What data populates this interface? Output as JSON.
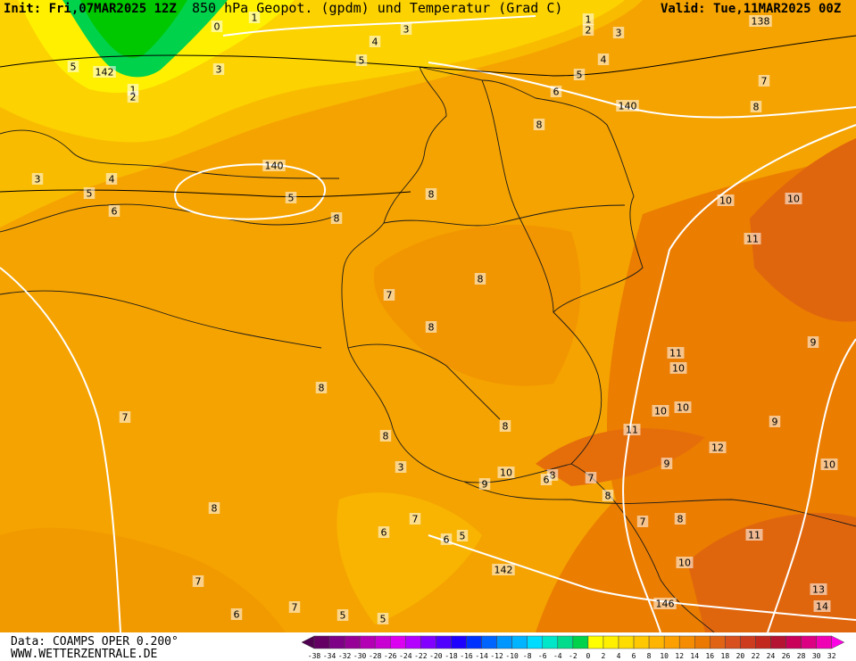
{
  "header": {
    "init": "Init: Fri,07MAR2025 12Z",
    "title": "850 hPa Geopot. (gpdm) und Temperatur (Grad C)",
    "valid": "Valid: Tue,11MAR2025 00Z"
  },
  "footer": {
    "data_source": "Data: COAMPS OPER 0.200°",
    "website": "WWW.WETTERZENTRALE.DE"
  },
  "colorbar": {
    "labels": [
      "-38",
      "-34",
      "-32",
      "-30",
      "-28",
      "-26",
      "-24",
      "-22",
      "-20",
      "-18",
      "-16",
      "-14",
      "-12",
      "-10",
      "-8",
      "-6",
      "-4",
      "-2",
      "0",
      "2",
      "4",
      "6",
      "8",
      "10",
      "12",
      "14",
      "16",
      "18",
      "20",
      "22",
      "24",
      "26",
      "28",
      "30",
      "32"
    ],
    "colors": [
      "#500050",
      "#640064",
      "#7d0087",
      "#960096",
      "#b400b4",
      "#c800d2",
      "#dc00f0",
      "#b400ff",
      "#8200ff",
      "#5000ff",
      "#1e00ff",
      "#0032ff",
      "#0064ff",
      "#0096ff",
      "#00b4ff",
      "#00dcff",
      "#00e6c8",
      "#00dc8c",
      "#00d24b",
      "#ffff00",
      "#fff000",
      "#ffdc00",
      "#ffc800",
      "#ffb400",
      "#fca000",
      "#f58c00",
      "#eb7800",
      "#e16414",
      "#d7501e",
      "#cd3c1e",
      "#c3281e",
      "#b41432",
      "#c8005a",
      "#dc0082",
      "#f000b4",
      "#ff00e6"
    ]
  },
  "contour_labels": [
    "0",
    "1",
    "3",
    "1",
    "2",
    "3",
    "138",
    "4",
    "3",
    "5",
    "5",
    "142",
    "1",
    "2",
    "5",
    "4",
    "7",
    "6",
    "140",
    "8",
    "8",
    "3",
    "4",
    "5",
    "140",
    "5",
    "6",
    "8",
    "8",
    "10",
    "10",
    "11",
    "8",
    "7",
    "8",
    "9",
    "11",
    "10",
    "8",
    "10",
    "10",
    "9",
    "7",
    "11",
    "8",
    "8",
    "12",
    "9",
    "3",
    "10",
    "10",
    "8",
    "6",
    "7",
    "9",
    "8",
    "8",
    "7",
    "7",
    "8",
    "6",
    "6",
    "5",
    "11",
    "142",
    "10",
    "7",
    "13",
    "146",
    "7",
    "14",
    "6",
    "5",
    "5"
  ]
}
